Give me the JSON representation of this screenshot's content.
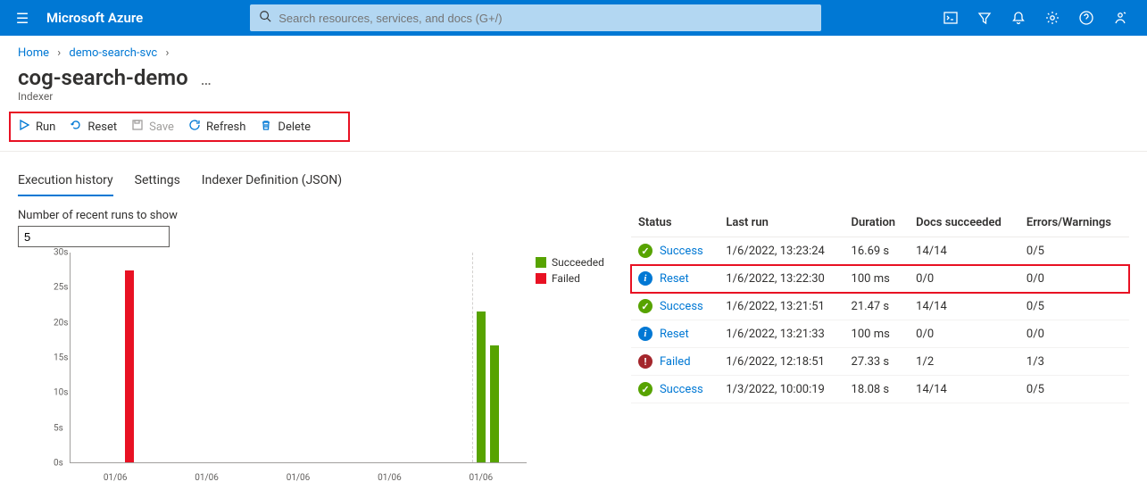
{
  "brand": "Microsoft Azure",
  "search": {
    "placeholder": "Search resources, services, and docs (G+/)"
  },
  "breadcrumbs": [
    {
      "label": "Home"
    },
    {
      "label": "demo-search-svc"
    }
  ],
  "title": "cog-search-demo",
  "subtitle": "Indexer",
  "toolbar": {
    "run": "Run",
    "reset": "Reset",
    "save": "Save",
    "refresh": "Refresh",
    "delete": "Delete",
    "highlight_color": "#e81123"
  },
  "tabs": {
    "history": "Execution history",
    "settings": "Settings",
    "json": "Indexer Definition (JSON)"
  },
  "runs_field": {
    "label": "Number of recent runs to show",
    "value": "5"
  },
  "chart": {
    "type": "bar",
    "ylabel_unit": "s",
    "ylim": [
      0,
      30
    ],
    "ytick_step": 5,
    "yticks": [
      "0s",
      "5s",
      "10s",
      "15s",
      "20s",
      "25s",
      "30s"
    ],
    "xticks": [
      "01/06",
      "01/06",
      "01/06",
      "01/06",
      "01/06"
    ],
    "bars": [
      {
        "x_pct": 12,
        "value": 27.33,
        "category": "Failed",
        "color": "#e81123"
      },
      {
        "x_pct": 89,
        "value": 21.47,
        "category": "Succeeded",
        "color": "#57a300"
      },
      {
        "x_pct": 92,
        "value": 16.69,
        "category": "Succeeded",
        "color": "#57a300"
      }
    ],
    "legend": [
      {
        "label": "Succeeded",
        "color": "#57a300"
      },
      {
        "label": "Failed",
        "color": "#e81123"
      }
    ],
    "grid_color": "#d2d0ce",
    "axis_color": "#a19f9d",
    "background_color": "#ffffff"
  },
  "table": {
    "columns": [
      "Status",
      "Last run",
      "Duration",
      "Docs succeeded",
      "Errors/Warnings"
    ],
    "rows": [
      {
        "status": "Success",
        "icon": "success",
        "last_run": "1/6/2022, 13:23:24",
        "duration": "16.69 s",
        "docs": "14/14",
        "errs": "0/5",
        "highlight": false
      },
      {
        "status": "Reset",
        "icon": "reset",
        "last_run": "1/6/2022, 13:22:30",
        "duration": "100 ms",
        "docs": "0/0",
        "errs": "0/0",
        "highlight": true
      },
      {
        "status": "Success",
        "icon": "success",
        "last_run": "1/6/2022, 13:21:51",
        "duration": "21.47 s",
        "docs": "14/14",
        "errs": "0/5",
        "highlight": false
      },
      {
        "status": "Reset",
        "icon": "reset",
        "last_run": "1/6/2022, 13:21:33",
        "duration": "100 ms",
        "docs": "0/0",
        "errs": "0/0",
        "highlight": false
      },
      {
        "status": "Failed",
        "icon": "failed",
        "last_run": "1/6/2022, 12:18:51",
        "duration": "27.33 s",
        "docs": "1/2",
        "errs": "1/3",
        "highlight": false
      },
      {
        "status": "Success",
        "icon": "success",
        "last_run": "1/3/2022, 10:00:19",
        "duration": "18.08 s",
        "docs": "14/14",
        "errs": "0/5",
        "highlight": false
      }
    ]
  },
  "colors": {
    "primary": "#0078d4",
    "success": "#57a300",
    "error": "#e81123",
    "failed_icon": "#a4262c"
  }
}
